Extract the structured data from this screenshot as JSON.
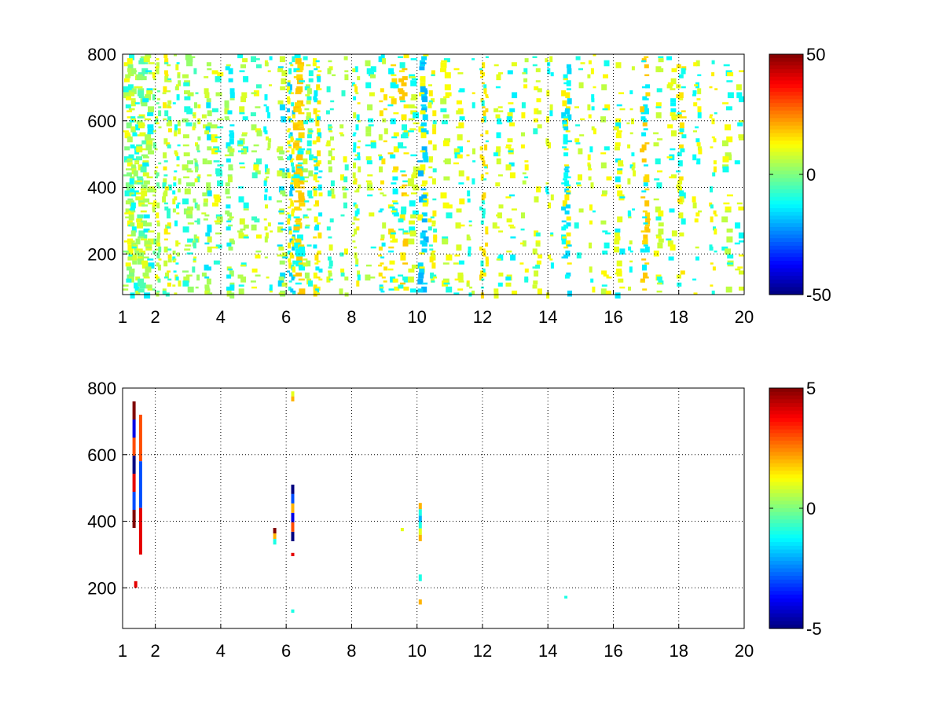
{
  "chart_data": [
    {
      "type": "heatmap",
      "title": "",
      "xlabel": "",
      "ylabel": "",
      "xlim": [
        1,
        20
      ],
      "ylim": [
        78,
        800
      ],
      "grid": true,
      "x_ticks": [
        1,
        2,
        4,
        6,
        8,
        10,
        12,
        14,
        16,
        18,
        20
      ],
      "y_ticks": [
        200,
        400,
        600,
        800
      ],
      "colorbar": {
        "colormap": "jet",
        "range": [
          -50,
          50
        ],
        "ticks": [
          -50,
          0,
          50
        ]
      },
      "description_of_values": "Dense sparse field of values mostly near 0 to +20 and -20, white cells are empty (NaN)",
      "columns": [
        {
          "x": 1.1,
          "from": 78,
          "to": 800,
          "density": 0.55,
          "values": [
            0,
            5,
            -10,
            12
          ]
        },
        {
          "x": 1.3,
          "from": 78,
          "to": 800,
          "density": 0.55,
          "values": [
            8,
            -12,
            3
          ]
        },
        {
          "x": 1.5,
          "from": 78,
          "to": 800,
          "density": 0.5,
          "values": [
            10,
            -5,
            2
          ]
        },
        {
          "x": 1.7,
          "from": 78,
          "to": 800,
          "density": 0.45,
          "values": [
            4,
            -14,
            9
          ]
        },
        {
          "x": 2.0,
          "from": 78,
          "to": 800,
          "density": 0.45,
          "values": [
            -3,
            12,
            6
          ]
        },
        {
          "x": 2.3,
          "from": 78,
          "to": 800,
          "density": 0.4,
          "values": [
            7,
            -8,
            14
          ]
        },
        {
          "x": 2.6,
          "from": 78,
          "to": 800,
          "density": 0.4,
          "values": [
            -12,
            5,
            10
          ]
        },
        {
          "x": 2.9,
          "from": 78,
          "to": 800,
          "density": 0.35,
          "values": [
            6,
            -10,
            2
          ]
        },
        {
          "x": 3.2,
          "from": 78,
          "to": 800,
          "density": 0.35,
          "values": [
            11,
            -6,
            3
          ]
        },
        {
          "x": 3.5,
          "from": 78,
          "to": 800,
          "density": 0.3,
          "values": [
            -15,
            8,
            4
          ]
        },
        {
          "x": 3.8,
          "from": 78,
          "to": 800,
          "density": 0.3,
          "values": [
            5,
            -9,
            12
          ]
        },
        {
          "x": 4.2,
          "from": 78,
          "to": 800,
          "density": 0.3,
          "values": [
            -14,
            7,
            3
          ]
        },
        {
          "x": 4.6,
          "from": 78,
          "to": 800,
          "density": 0.3,
          "values": [
            9,
            -11,
            5
          ]
        },
        {
          "x": 5.0,
          "from": 78,
          "to": 800,
          "density": 0.25,
          "values": [
            -7,
            12,
            4
          ]
        },
        {
          "x": 5.4,
          "from": 78,
          "to": 800,
          "density": 0.25,
          "values": [
            10,
            -13,
            6
          ]
        },
        {
          "x": 5.8,
          "from": 78,
          "to": 800,
          "density": 0.3,
          "values": [
            -16,
            8,
            3
          ]
        },
        {
          "x": 6.1,
          "from": 78,
          "to": 800,
          "density": 0.7,
          "values": [
            -18,
            14,
            -10,
            12
          ]
        },
        {
          "x": 6.3,
          "from": 78,
          "to": 800,
          "density": 0.6,
          "values": [
            16,
            -12,
            18
          ]
        },
        {
          "x": 6.6,
          "from": 78,
          "to": 800,
          "density": 0.3,
          "values": [
            8,
            -10,
            4
          ]
        },
        {
          "x": 6.9,
          "from": 78,
          "to": 800,
          "density": 0.5,
          "values": [
            15,
            -14,
            12
          ]
        },
        {
          "x": 7.3,
          "from": 78,
          "to": 800,
          "density": 0.25,
          "values": [
            -9,
            10,
            5
          ]
        },
        {
          "x": 7.7,
          "from": 78,
          "to": 800,
          "density": 0.25,
          "values": [
            12,
            -8,
            6
          ]
        },
        {
          "x": 8.1,
          "from": 78,
          "to": 800,
          "density": 0.3,
          "values": [
            -12,
            14,
            8
          ]
        },
        {
          "x": 8.5,
          "from": 78,
          "to": 800,
          "density": 0.25,
          "values": [
            10,
            -11,
            5
          ]
        },
        {
          "x": 8.9,
          "from": 78,
          "to": 800,
          "density": 0.3,
          "values": [
            -14,
            15,
            7
          ]
        },
        {
          "x": 9.2,
          "from": 78,
          "to": 800,
          "density": 0.35,
          "values": [
            12,
            -13,
            16
          ]
        },
        {
          "x": 9.5,
          "from": 78,
          "to": 800,
          "density": 0.4,
          "values": [
            18,
            -10,
            14
          ]
        },
        {
          "x": 9.8,
          "from": 78,
          "to": 800,
          "density": 0.3,
          "values": [
            -12,
            10,
            8
          ]
        },
        {
          "x": 10.1,
          "from": 78,
          "to": 800,
          "density": 0.5,
          "values": [
            -20,
            12,
            -16
          ]
        },
        {
          "x": 10.4,
          "from": 78,
          "to": 800,
          "density": 0.3,
          "values": [
            14,
            -9,
            10
          ]
        },
        {
          "x": 10.8,
          "from": 78,
          "to": 800,
          "density": 0.25,
          "values": [
            -10,
            12,
            6
          ]
        },
        {
          "x": 11.2,
          "from": 78,
          "to": 800,
          "density": 0.25,
          "values": [
            9,
            -12,
            13
          ]
        },
        {
          "x": 11.6,
          "from": 78,
          "to": 800,
          "density": 0.2,
          "values": [
            -11,
            14,
            7
          ]
        },
        {
          "x": 12.0,
          "from": 78,
          "to": 800,
          "density": 0.45,
          "values": [
            16,
            -10,
            14
          ]
        },
        {
          "x": 12.4,
          "from": 78,
          "to": 800,
          "density": 0.2,
          "values": [
            -12,
            10,
            8
          ]
        },
        {
          "x": 12.8,
          "from": 78,
          "to": 800,
          "density": 0.2,
          "values": [
            10,
            -14,
            12
          ]
        },
        {
          "x": 13.2,
          "from": 78,
          "to": 800,
          "density": 0.2,
          "values": [
            -10,
            13,
            6
          ]
        },
        {
          "x": 13.6,
          "from": 78,
          "to": 800,
          "density": 0.2,
          "values": [
            12,
            -9,
            8
          ]
        },
        {
          "x": 14.0,
          "from": 78,
          "to": 800,
          "density": 0.2,
          "values": [
            -13,
            11,
            9
          ]
        },
        {
          "x": 14.5,
          "from": 78,
          "to": 800,
          "density": 0.5,
          "values": [
            -16,
            14,
            -12
          ]
        },
        {
          "x": 14.9,
          "from": 78,
          "to": 800,
          "density": 0.2,
          "values": [
            11,
            -10,
            7
          ]
        },
        {
          "x": 15.3,
          "from": 78,
          "to": 800,
          "density": 0.2,
          "values": [
            -12,
            12,
            8
          ]
        },
        {
          "x": 15.7,
          "from": 78,
          "to": 800,
          "density": 0.2,
          "values": [
            13,
            -11,
            6
          ]
        },
        {
          "x": 16.1,
          "from": 78,
          "to": 800,
          "density": 0.25,
          "values": [
            -14,
            10,
            12
          ]
        },
        {
          "x": 16.5,
          "from": 78,
          "to": 800,
          "density": 0.2,
          "values": [
            10,
            -12,
            8
          ]
        },
        {
          "x": 16.9,
          "from": 78,
          "to": 800,
          "density": 0.5,
          "values": [
            18,
            -14,
            16
          ]
        },
        {
          "x": 17.3,
          "from": 78,
          "to": 800,
          "density": 0.2,
          "values": [
            -10,
            12,
            7
          ]
        },
        {
          "x": 17.7,
          "from": 78,
          "to": 800,
          "density": 0.2,
          "values": [
            12,
            -13,
            9
          ]
        },
        {
          "x": 18.0,
          "from": 78,
          "to": 800,
          "density": 0.3,
          "values": [
            15,
            -11,
            10
          ]
        },
        {
          "x": 18.5,
          "from": 78,
          "to": 800,
          "density": 0.2,
          "values": [
            -12,
            13,
            8
          ]
        },
        {
          "x": 19.0,
          "from": 78,
          "to": 800,
          "density": 0.25,
          "values": [
            14,
            -10,
            12
          ]
        },
        {
          "x": 19.4,
          "from": 78,
          "to": 800,
          "density": 0.2,
          "values": [
            -11,
            12,
            6
          ]
        },
        {
          "x": 19.8,
          "from": 78,
          "to": 800,
          "density": 0.2,
          "values": [
            12,
            -12,
            9
          ]
        }
      ]
    },
    {
      "type": "heatmap",
      "title": "",
      "xlabel": "",
      "ylabel": "",
      "xlim": [
        1,
        20
      ],
      "ylim": [
        78,
        800
      ],
      "grid": true,
      "x_ticks": [
        1,
        2,
        4,
        6,
        8,
        10,
        12,
        14,
        16,
        18,
        20
      ],
      "y_ticks": [
        200,
        400,
        600,
        800
      ],
      "colorbar": {
        "colormap": "jet",
        "range": [
          -5,
          5
        ],
        "ticks": [
          -5,
          0,
          5
        ]
      },
      "cells": [
        {
          "x": 1.35,
          "y_from": 380,
          "y_to": 760,
          "values": [
            5,
            -4,
            3,
            -5,
            4,
            -3,
            5
          ]
        },
        {
          "x": 1.4,
          "y_from": 200,
          "y_to": 220,
          "values": [
            4
          ]
        },
        {
          "x": 1.55,
          "y_from": 300,
          "y_to": 720,
          "values": [
            3,
            -3,
            4
          ]
        },
        {
          "x": 5.65,
          "y_from": 330,
          "y_to": 380,
          "values": [
            5,
            2,
            -1
          ]
        },
        {
          "x": 6.2,
          "y_from": 340,
          "y_to": 510,
          "values": [
            -5,
            -3,
            2,
            -4,
            3,
            -5
          ]
        },
        {
          "x": 6.2,
          "y_from": 760,
          "y_to": 790,
          "values": [
            1,
            2
          ]
        },
        {
          "x": 6.2,
          "y_from": 125,
          "y_to": 135,
          "values": [
            -1
          ]
        },
        {
          "x": 6.2,
          "y_from": 295,
          "y_to": 305,
          "values": [
            4
          ]
        },
        {
          "x": 9.55,
          "y_from": 370,
          "y_to": 380,
          "values": [
            1
          ]
        },
        {
          "x": 10.1,
          "y_from": 340,
          "y_to": 455,
          "values": [
            2,
            -1,
            -2,
            -1,
            1,
            2
          ]
        },
        {
          "x": 10.1,
          "y_from": 220,
          "y_to": 240,
          "values": [
            -1
          ]
        },
        {
          "x": 10.1,
          "y_from": 150,
          "y_to": 165,
          "values": [
            2
          ]
        },
        {
          "x": 14.55,
          "y_from": 168,
          "y_to": 176,
          "values": [
            -1
          ]
        }
      ]
    }
  ]
}
